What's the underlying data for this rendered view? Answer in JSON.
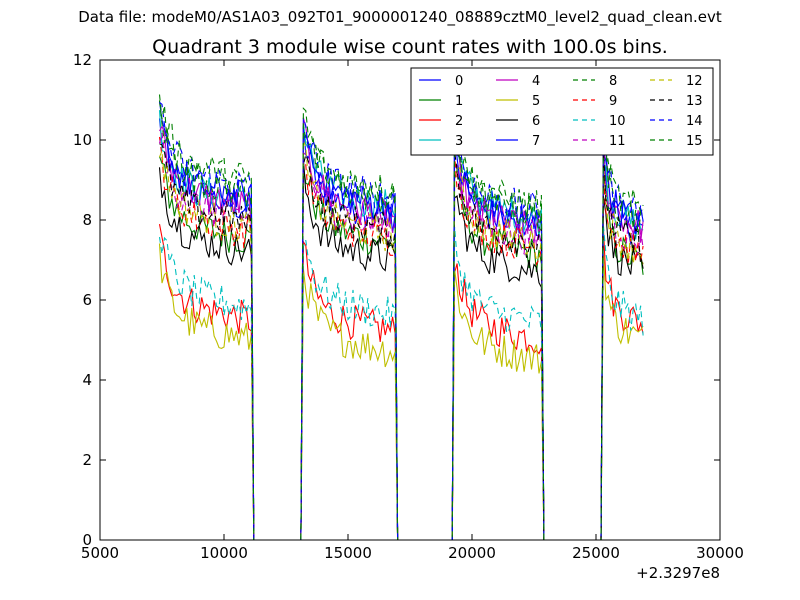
{
  "suptitle": "Data file: modeM0/AS1A03_092T01_9000001240_08889cztM0_level2_quad_clean.evt",
  "chart_data": {
    "type": "line",
    "title": "Quadrant 3 module wise count rates with 100.0s bins.",
    "xlabel": "",
    "ylabel": "",
    "xlim": [
      5000,
      30000
    ],
    "ylim": [
      0,
      12
    ],
    "x_offset_label": "+2.3297e8",
    "xticks": [
      5000,
      10000,
      15000,
      20000,
      25000,
      30000
    ],
    "xtick_labels": [
      "5000",
      "10000",
      "15000",
      "20000",
      "25000",
      "30000"
    ],
    "yticks": [
      0,
      2,
      4,
      6,
      8,
      10,
      12
    ],
    "ytick_labels": [
      "0",
      "2",
      "4",
      "6",
      "8",
      "10",
      "12"
    ],
    "grid": false,
    "legend_position": "top-right",
    "legend_columns": 4,
    "segments": [
      {
        "start": 7400,
        "end": 11100
      },
      {
        "start": 13200,
        "end": 16900
      },
      {
        "start": 19300,
        "end": 22800
      },
      {
        "start": 25300,
        "end": 26900
      }
    ],
    "gap_level": 0,
    "series": [
      {
        "name": "0",
        "color": "#0000ff",
        "dash": "solid",
        "mean": [
          8.8,
          8.6,
          8.4,
          8.2
        ]
      },
      {
        "name": "1",
        "color": "#008000",
        "dash": "solid",
        "mean": [
          8.0,
          7.9,
          7.6,
          7.4
        ]
      },
      {
        "name": "2",
        "color": "#ff0000",
        "dash": "solid",
        "mean": [
          6.0,
          5.7,
          5.5,
          5.9
        ]
      },
      {
        "name": "3",
        "color": "#00bfbf",
        "dash": "solid",
        "mean": [
          8.9,
          8.8,
          8.5,
          8.3
        ]
      },
      {
        "name": "4",
        "color": "#bf00bf",
        "dash": "solid",
        "mean": [
          8.8,
          8.6,
          8.2,
          8.3
        ]
      },
      {
        "name": "5",
        "color": "#bfbf00",
        "dash": "solid",
        "mean": [
          5.5,
          5.2,
          5.0,
          5.5
        ]
      },
      {
        "name": "6",
        "color": "#000000",
        "dash": "solid",
        "mean": [
          7.7,
          7.5,
          7.2,
          7.2
        ]
      },
      {
        "name": "7",
        "color": "#0000ff",
        "dash": "solid",
        "mean": [
          9.0,
          8.8,
          8.3,
          8.4
        ]
      },
      {
        "name": "8",
        "color": "#008000",
        "dash": "dashed",
        "mean": [
          9.2,
          9.0,
          8.6,
          8.5
        ]
      },
      {
        "name": "9",
        "color": "#ff0000",
        "dash": "dashed",
        "mean": [
          8.2,
          8.0,
          7.8,
          7.6
        ]
      },
      {
        "name": "10",
        "color": "#00bfbf",
        "dash": "dashed",
        "mean": [
          6.3,
          6.1,
          5.9,
          6.0
        ]
      },
      {
        "name": "11",
        "color": "#bf00bf",
        "dash": "dashed",
        "mean": [
          8.5,
          8.3,
          8.0,
          7.9
        ]
      },
      {
        "name": "12",
        "color": "#bfbf00",
        "dash": "dashed",
        "mean": [
          8.3,
          8.1,
          7.9,
          7.7
        ]
      },
      {
        "name": "13",
        "color": "#000000",
        "dash": "dashed",
        "mean": [
          8.4,
          8.2,
          7.9,
          7.8
        ]
      },
      {
        "name": "14",
        "color": "#0000ff",
        "dash": "dashed",
        "mean": [
          9.3,
          9.0,
          8.7,
          8.6
        ]
      },
      {
        "name": "15",
        "color": "#008000",
        "dash": "dashed",
        "mean": [
          9.5,
          9.2,
          8.8,
          8.7
        ]
      }
    ]
  }
}
